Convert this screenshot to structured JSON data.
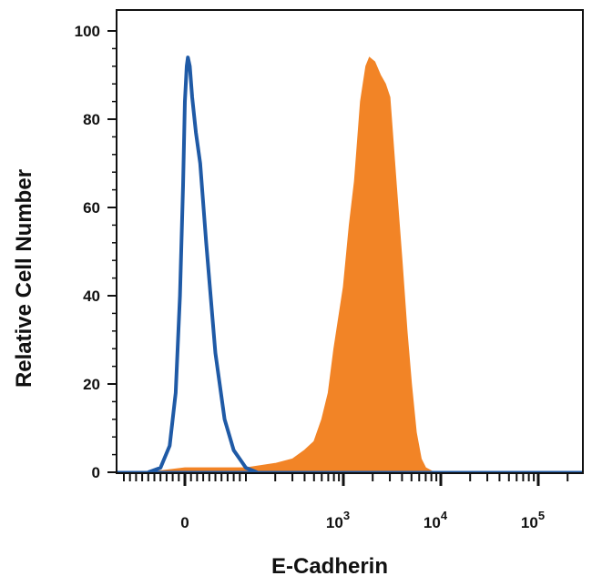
{
  "chart_data": {
    "type": "area",
    "xlabel": "E-Cadherin",
    "ylabel": "Relative Cell Number",
    "x_scale": "biexponential",
    "x_ticks": [
      {
        "value": 0,
        "base": "0",
        "exp": ""
      },
      {
        "value": 1000,
        "base": "10",
        "exp": "3"
      },
      {
        "value": 10000,
        "base": "10",
        "exp": "4"
      },
      {
        "value": 100000,
        "base": "10",
        "exp": "5"
      }
    ],
    "ylim": [
      0,
      100
    ],
    "y_ticks": [
      "0",
      "20",
      "40",
      "60",
      "80",
      "100"
    ],
    "grid": false,
    "series": [
      {
        "style": "outline",
        "color": "#1f5aa6",
        "points": [
          [
            -60,
            0
          ],
          [
            -40,
            1
          ],
          [
            -25,
            6
          ],
          [
            -15,
            18
          ],
          [
            -8,
            40
          ],
          [
            -3,
            65
          ],
          [
            0,
            84
          ],
          [
            3,
            92
          ],
          [
            5,
            94
          ],
          [
            8,
            92
          ],
          [
            12,
            85
          ],
          [
            18,
            77
          ],
          [
            25,
            70
          ],
          [
            35,
            52
          ],
          [
            50,
            27
          ],
          [
            65,
            12
          ],
          [
            80,
            5
          ],
          [
            100,
            1
          ],
          [
            130,
            0
          ]
        ]
      },
      {
        "style": "filled",
        "color": "#f28426",
        "points": [
          [
            -60,
            0
          ],
          [
            0,
            1
          ],
          [
            100,
            1
          ],
          [
            200,
            2
          ],
          [
            300,
            3
          ],
          [
            400,
            5
          ],
          [
            500,
            7
          ],
          [
            600,
            12
          ],
          [
            700,
            18
          ],
          [
            800,
            28
          ],
          [
            1000,
            42
          ],
          [
            1150,
            56
          ],
          [
            1300,
            66
          ],
          [
            1500,
            84
          ],
          [
            1700,
            92
          ],
          [
            1850,
            94
          ],
          [
            2100,
            93
          ],
          [
            2400,
            90
          ],
          [
            2700,
            88
          ],
          [
            3000,
            85
          ],
          [
            3500,
            65
          ],
          [
            4000,
            48
          ],
          [
            4500,
            32
          ],
          [
            5000,
            20
          ],
          [
            5600,
            9
          ],
          [
            6300,
            3
          ],
          [
            7000,
            1
          ],
          [
            8500,
            0
          ]
        ]
      }
    ]
  }
}
